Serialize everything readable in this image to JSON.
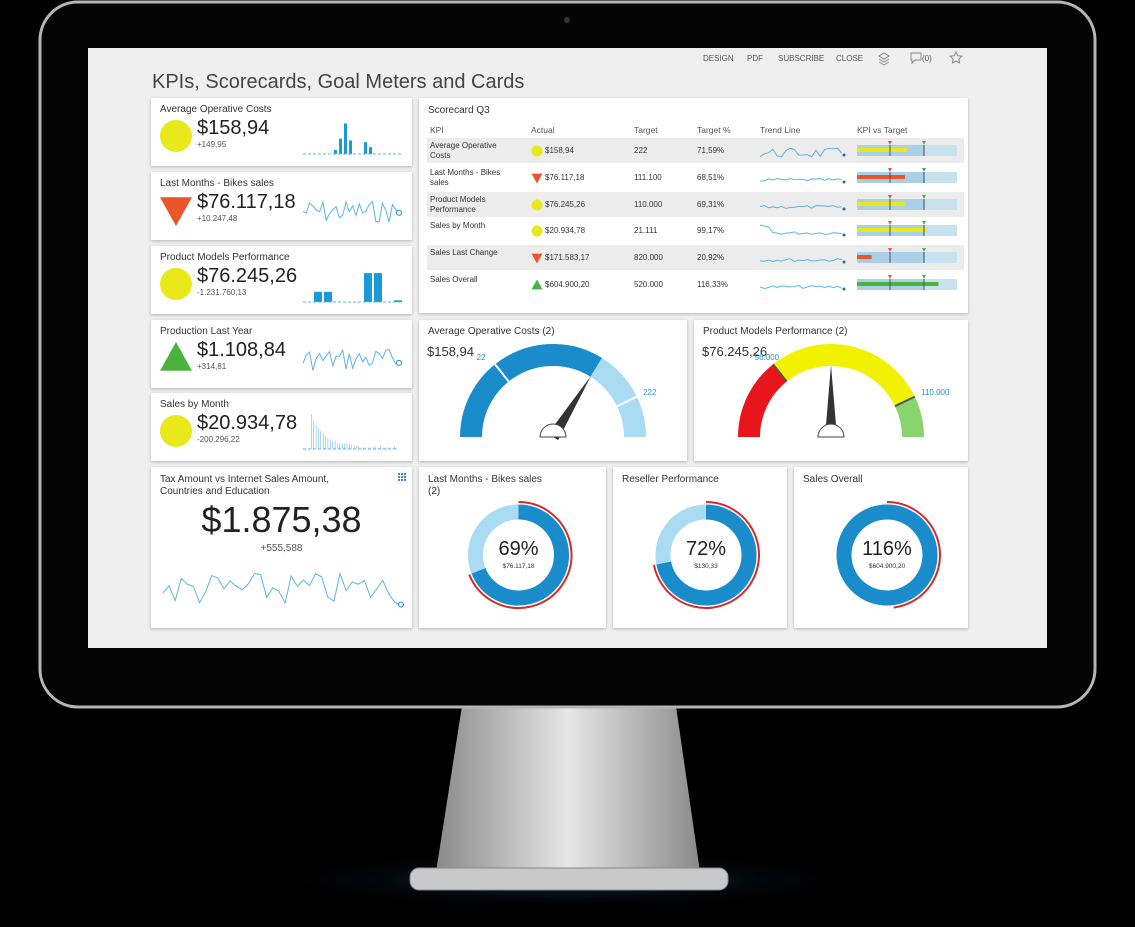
{
  "toolbar": [
    "DESIGN",
    "PDF",
    "SUBSCRIBE",
    "CLOSE",
    "(0)"
  ],
  "title": "KPIs, Scorecards, Goal Meters and Cards",
  "kpi_cards": [
    {
      "title": "Average Operative Costs",
      "value": "$158,94",
      "delta": "+149,95",
      "indicator": {
        "shape": "circle",
        "color": "#e8e81a"
      }
    },
    {
      "title": "Last Months - Bikes sales",
      "value": "$76.117,18",
      "delta": "+10.247,48",
      "indicator": {
        "shape": "down",
        "color": "#e8562a"
      }
    },
    {
      "title": "Product Models Performance",
      "value": "$76.245,26",
      "delta": "-1.231.760,13",
      "indicator": {
        "shape": "circle",
        "color": "#e8e81a"
      }
    },
    {
      "title": "Production Last Year",
      "value": "$1.108,84",
      "delta": "+314,81",
      "indicator": {
        "shape": "up",
        "color": "#4cb23f"
      }
    },
    {
      "title": "Sales by Month",
      "value": "$20.934,78",
      "delta": "-200.296,22",
      "indicator": {
        "shape": "circle",
        "color": "#e8e81a"
      }
    }
  ],
  "scorecard": {
    "title": "Scorecard Q3",
    "columns": [
      "KPI",
      "Actual",
      "Target",
      "Target %",
      "Trend Line",
      "KPI vs Target"
    ],
    "rows": [
      {
        "kpi": "Average Operative Costs",
        "actual": "$158,94",
        "target": "222",
        "target_pct": "71,59%",
        "indicator": {
          "shape": "circle",
          "color": "#e8e81a"
        }
      },
      {
        "kpi": "Last Months - Bikes sales",
        "actual": "$76.117,18",
        "target": "111.100",
        "target_pct": "68,51%",
        "indicator": {
          "shape": "down",
          "color": "#e8562a"
        }
      },
      {
        "kpi": "Product Models Performance",
        "actual": "$76.245,26",
        "target": "110.000",
        "target_pct": "69,31%",
        "indicator": {
          "shape": "circle",
          "color": "#e8e81a"
        }
      },
      {
        "kpi": "Sales by Month",
        "actual": "$20.934,78",
        "target": "21.111",
        "target_pct": "99,17%",
        "indicator": {
          "shape": "circle",
          "color": "#e8e81a"
        }
      },
      {
        "kpi": "Sales Last Change",
        "actual": "$171.583,17",
        "target": "820.000",
        "target_pct": "20,92%",
        "indicator": {
          "shape": "down",
          "color": "#e8562a"
        }
      },
      {
        "kpi": "Sales Overall",
        "actual": "$604.900,20",
        "target": "520.000",
        "target_pct": "116,33%",
        "indicator": {
          "shape": "up",
          "color": "#4cb23f"
        }
      }
    ]
  },
  "gauges": [
    {
      "title": "Average Operative Costs (2)",
      "value": "$158,94",
      "min": "22",
      "max": "222"
    },
    {
      "title": "Product Models Performance (2)",
      "value": "$76.245,26",
      "min": "56.000",
      "max": "110.000"
    }
  ],
  "big_card": {
    "title": "Tax Amount vs Internet Sales Amount, Countries and Education",
    "value": "$1.875,38",
    "delta": "+555,588"
  },
  "donuts": [
    {
      "title": "Last Months - Bikes sales (2)",
      "percent": {
        "value": 69,
        "label": "69%"
      },
      "amount": "$76.117,18"
    },
    {
      "title": "Reseller Performance",
      "percent": {
        "value": 72,
        "label": "72%"
      },
      "amount": "$130,33"
    },
    {
      "title": "Sales Overall",
      "percent": {
        "value": 116,
        "label": "116%"
      },
      "amount": "$604.900,20"
    }
  ]
}
